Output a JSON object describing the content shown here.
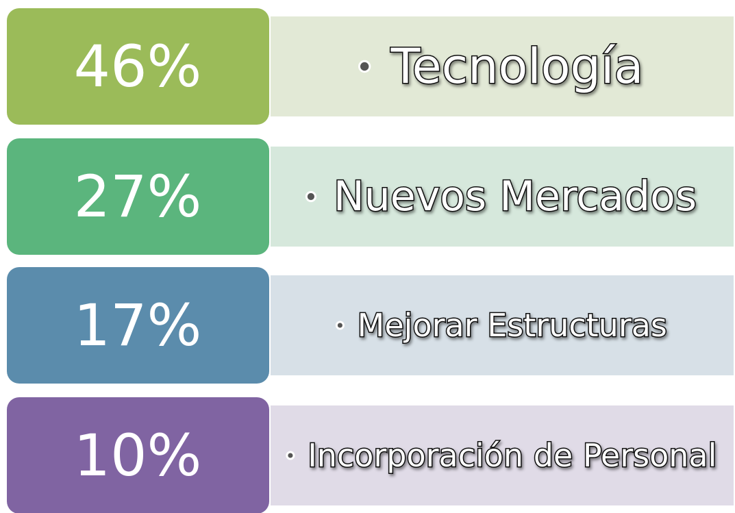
{
  "items": [
    {
      "percent": "46%",
      "label": "Tecnología"
    },
    {
      "percent": "27%",
      "label": "Nuevos Mercados"
    },
    {
      "percent": "17%",
      "label": "Mejorar Estructuras"
    },
    {
      "percent": "10%",
      "label": "Incorporación de Personal"
    }
  ]
}
